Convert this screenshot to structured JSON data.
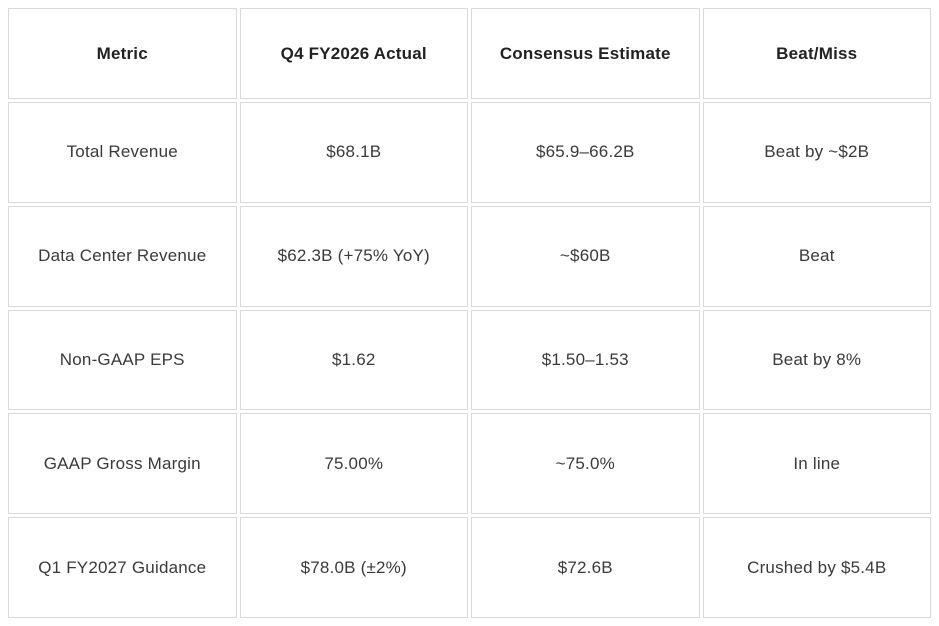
{
  "colors": {
    "background": "#ffffff",
    "grid_line": "#d9d9d9",
    "header_text": "#222222",
    "body_text": "#3a3a3a"
  },
  "chart_data": {
    "type": "table",
    "columns": [
      "Metric",
      "Q4 FY2026 Actual",
      "Consensus Estimate",
      "Beat/Miss"
    ],
    "rows": [
      [
        "Total Revenue",
        "$68.1B",
        "$65.9–66.2B",
        "Beat by ~$2B"
      ],
      [
        "Data Center Revenue",
        "$62.3B (+75% YoY)",
        "~$60B",
        "Beat"
      ],
      [
        "Non-GAAP EPS",
        "$1.62",
        "$1.50–1.53",
        "Beat by 8%"
      ],
      [
        "GAAP Gross Margin",
        "75.00%",
        "~75.0%",
        "In line"
      ],
      [
        "Q1 FY2027 Guidance",
        "$78.0B (±2%)",
        "$72.6B",
        "Crushed by $5.4B"
      ]
    ]
  }
}
